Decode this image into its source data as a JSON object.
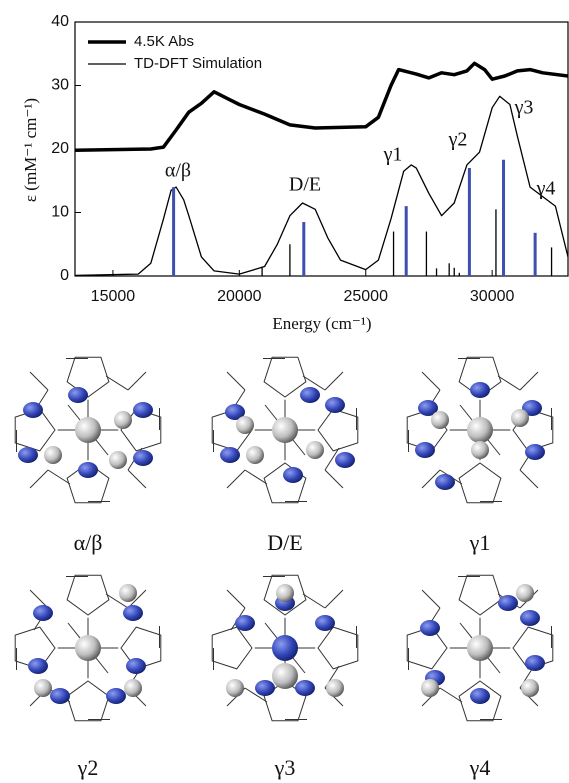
{
  "chart_data": {
    "type": "line",
    "xlabel": "Energy (cm⁻¹)",
    "ylabel": "ε (mM⁻¹ cm⁻¹)",
    "xlim": [
      13500,
      33000
    ],
    "ylim": [
      0,
      40
    ],
    "xticks": [
      15000,
      20000,
      25000,
      30000
    ],
    "yticks": [
      0,
      10,
      20,
      30,
      40
    ],
    "legend": "upper left",
    "series": [
      {
        "name": "4.5K Abs",
        "kind": "line",
        "width": 3.5,
        "color": "#000000",
        "x": [
          13500,
          16500,
          17000,
          17500,
          18000,
          18500,
          19000,
          19500,
          20000,
          21000,
          22000,
          23000,
          25000,
          25500,
          26000,
          26300,
          27000,
          27500,
          28000,
          28500,
          29000,
          29300,
          29700,
          30000,
          30500,
          31000,
          31500,
          32000,
          33000
        ],
        "values": [
          19.8,
          20,
          20.3,
          23,
          25.8,
          27.2,
          29,
          28,
          27,
          25.5,
          23.8,
          23.3,
          23.5,
          25,
          30,
          32.5,
          31.8,
          31.2,
          32,
          31.7,
          32.3,
          33.5,
          32.5,
          31,
          31.5,
          32.3,
          32.5,
          32,
          31.5
        ]
      },
      {
        "name": "TD-DFT Simulation",
        "kind": "line",
        "width": 1.3,
        "color": "#000000",
        "x": [
          13500,
          16000,
          16500,
          17000,
          17300,
          17500,
          17800,
          18000,
          18500,
          19000,
          20000,
          21000,
          21500,
          22000,
          22500,
          23000,
          23500,
          24000,
          25000,
          25500,
          26000,
          26500,
          26800,
          27000,
          27500,
          28000,
          28500,
          29000,
          29500,
          30000,
          30300,
          30700,
          31000,
          31500,
          32000,
          32500,
          33000
        ],
        "values": [
          0.1,
          0.3,
          2,
          9,
          13.5,
          14,
          12,
          9.5,
          3,
          0.8,
          0.3,
          1.5,
          5,
          9.5,
          11.5,
          10.5,
          6,
          2.5,
          1,
          2.5,
          9,
          16.5,
          17.5,
          17,
          13,
          9.5,
          11.5,
          17.5,
          19.5,
          26.5,
          28.3,
          27,
          22,
          14,
          12.5,
          11,
          3
        ]
      },
      {
        "kind": "stick",
        "width": 1.3,
        "color": "#000000",
        "x": [
          20900,
          22000,
          26100,
          27400,
          27800,
          28300,
          28500,
          28700,
          30150,
          32350
        ],
        "values": [
          1.5,
          5,
          7,
          7,
          1.2,
          2,
          1.3,
          0.5,
          10.5,
          4.5
        ]
      },
      {
        "kind": "stick",
        "width": 3,
        "color": "#3d4fb0",
        "x": [
          17400,
          22550,
          26600,
          29100,
          30450,
          31700
        ],
        "values": [
          14,
          8.5,
          11,
          17,
          18.3,
          6.8
        ]
      }
    ],
    "annotations": [
      "α/β",
      "D/E",
      "γ1",
      "γ2",
      "γ3",
      "γ4"
    ]
  },
  "orbitals": {
    "labels": [
      "α/β",
      "D/E",
      "γ1",
      "γ2",
      "γ3",
      "γ4"
    ]
  }
}
